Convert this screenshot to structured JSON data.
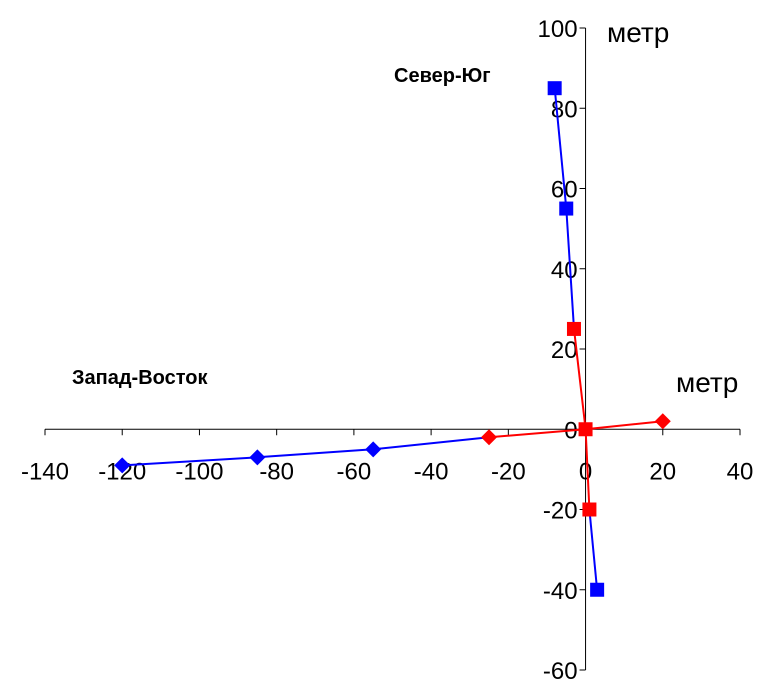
{
  "chart_data": {
    "type": "scatter",
    "x_unit_label": "метр",
    "y_unit_label": "метр",
    "xlim": [
      -140,
      40
    ],
    "ylim": [
      -60,
      100
    ],
    "x_ticks": [
      -140,
      -120,
      -100,
      -80,
      -60,
      -40,
      -20,
      0,
      20,
      40
    ],
    "y_ticks": [
      100,
      80,
      60,
      40,
      20,
      0,
      -20,
      -40,
      -60
    ],
    "grid": false,
    "legend": "none",
    "annotations": [
      {
        "text": "Север-Юг",
        "series": "north_south"
      },
      {
        "text": "Запад-Восток",
        "series": "west_east"
      }
    ],
    "series": [
      {
        "key": "west_east_blue",
        "marker": "diamond",
        "color": "#0000ff",
        "points": [
          [
            -120,
            -9
          ],
          [
            -85,
            -7
          ],
          [
            -55,
            -5
          ],
          [
            -25,
            -2
          ]
        ]
      },
      {
        "key": "west_east_red",
        "marker": "diamond",
        "color": "#ff0000",
        "points": [
          [
            -25,
            -2
          ],
          [
            0,
            0
          ],
          [
            20,
            2
          ]
        ]
      },
      {
        "key": "north_south_blue",
        "marker": "square",
        "color": "#0000ff",
        "points": [
          [
            -8,
            85
          ],
          [
            -5,
            55
          ],
          [
            -3,
            25
          ]
        ]
      },
      {
        "key": "north_south_red",
        "marker": "square",
        "color": "#ff0000",
        "points": [
          [
            -3,
            25
          ],
          [
            0,
            0
          ],
          [
            1,
            -20
          ]
        ]
      },
      {
        "key": "north_south_blue_lower",
        "marker": "square",
        "color": "#0000ff",
        "points": [
          [
            1,
            -20
          ],
          [
            3,
            -40
          ]
        ]
      }
    ],
    "draw_markers": {
      "blue_diamond_points": [
        [
          -120,
          -9
        ],
        [
          -85,
          -7
        ],
        [
          -55,
          -5
        ]
      ],
      "red_diamond_points": [
        [
          -25,
          -2
        ],
        [
          20,
          2
        ]
      ],
      "blue_square_points": [
        [
          -8,
          85
        ],
        [
          -5,
          55
        ],
        [
          3,
          -40
        ]
      ],
      "red_square_points": [
        [
          -3,
          25
        ],
        [
          0,
          0
        ],
        [
          1,
          -20
        ]
      ]
    }
  }
}
